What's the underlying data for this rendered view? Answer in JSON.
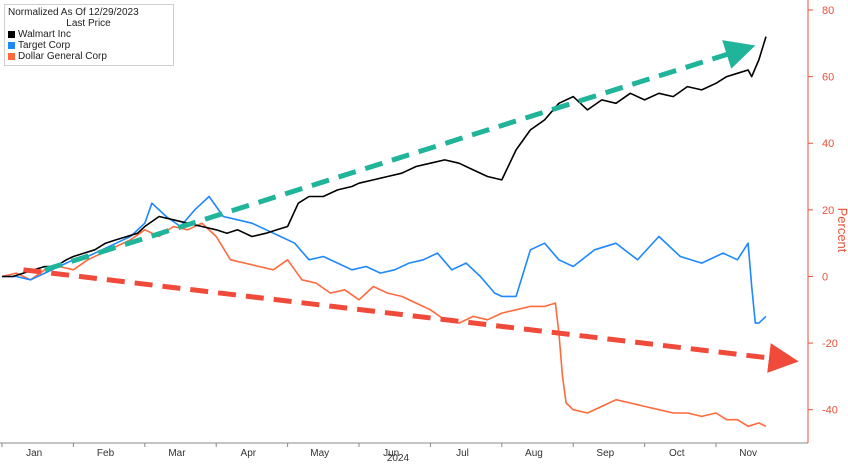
{
  "legend": {
    "header": "Normalized As Of 12/29/2023",
    "subheader": "Last Price"
  },
  "chart_data": {
    "type": "line",
    "ylabel": "Percent",
    "ylim": [
      -50,
      80
    ],
    "y_ticks": [
      80,
      60,
      40,
      20,
      0,
      -20,
      -40
    ],
    "y_tick_labels": [
      "80",
      "60",
      "40",
      "20",
      "0",
      "-20",
      "-40"
    ],
    "x_ticks": [
      "Jan",
      "Feb",
      "Mar",
      "Apr",
      "May",
      "Jun",
      "Jul",
      "Aug",
      "Sep",
      "Oct",
      "Nov"
    ],
    "x_year_label": "2024",
    "grid": false,
    "legend_position": "top-left",
    "axis_color": "#e8523a",
    "series": [
      {
        "name": "Walmart Inc",
        "color": "#000000",
        "x": [
          0,
          0.15,
          0.3,
          0.45,
          0.6,
          0.75,
          0.9,
          1,
          1.15,
          1.3,
          1.45,
          1.6,
          1.75,
          1.9,
          2,
          2.2,
          2.4,
          2.6,
          2.8,
          3,
          3.15,
          3.3,
          3.5,
          3.7,
          3.85,
          4,
          4.15,
          4.3,
          4.5,
          4.7,
          4.9,
          5,
          5.2,
          5.4,
          5.6,
          5.8,
          6,
          6.2,
          6.4,
          6.6,
          6.8,
          7,
          7.2,
          7.4,
          7.6,
          7.8,
          8,
          8.2,
          8.4,
          8.6,
          8.8,
          9,
          9.2,
          9.4,
          9.6,
          9.8,
          10,
          10.15,
          10.3,
          10.45,
          10.5,
          10.6,
          10.7
        ],
        "values": [
          0,
          0,
          1,
          2,
          3,
          3,
          5,
          6,
          7,
          8,
          10,
          11,
          12,
          13,
          15,
          18,
          17,
          16,
          15,
          14,
          13,
          14,
          12,
          13,
          14,
          15,
          22,
          24,
          24,
          26,
          27,
          28,
          29,
          30,
          31,
          33,
          34,
          35,
          34,
          32,
          30,
          29,
          38,
          44,
          47,
          52,
          54,
          50,
          53,
          52,
          55,
          53,
          55,
          54,
          57,
          56,
          58,
          60,
          61,
          62,
          60,
          65,
          72
        ]
      },
      {
        "name": "Target Corp",
        "color": "#1e88ff",
        "x": [
          0,
          0.2,
          0.4,
          0.6,
          0.8,
          1,
          1.2,
          1.4,
          1.6,
          1.8,
          2,
          2.1,
          2.3,
          2.5,
          2.7,
          2.9,
          3.1,
          3.3,
          3.5,
          3.7,
          3.9,
          4.1,
          4.3,
          4.5,
          4.7,
          4.9,
          5.1,
          5.3,
          5.5,
          5.7,
          5.9,
          6.1,
          6.3,
          6.5,
          6.7,
          6.9,
          7,
          7.2,
          7.4,
          7.6,
          7.8,
          8,
          8.3,
          8.6,
          8.9,
          9.2,
          9.5,
          9.8,
          10.1,
          10.3,
          10.45,
          10.5,
          10.55,
          10.6,
          10.7
        ],
        "values": [
          0,
          0,
          -1,
          1,
          3,
          5,
          6,
          8,
          10,
          12,
          16,
          22,
          18,
          15,
          20,
          24,
          18,
          17,
          16,
          14,
          12,
          10,
          5,
          6,
          4,
          2,
          3,
          1,
          2,
          4,
          5,
          7,
          2,
          4,
          0,
          -5,
          -6,
          -6,
          8,
          10,
          5,
          3,
          8,
          10,
          5,
          12,
          6,
          4,
          7,
          5,
          10,
          -3,
          -14,
          -14,
          -12
        ]
      },
      {
        "name": "Dollar General Corp",
        "color": "#ff6a3d",
        "x": [
          0,
          0.2,
          0.4,
          0.6,
          0.8,
          1,
          1.2,
          1.4,
          1.6,
          1.8,
          2,
          2.2,
          2.4,
          2.6,
          2.8,
          3,
          3.2,
          3.4,
          3.6,
          3.8,
          4,
          4.2,
          4.4,
          4.6,
          4.8,
          5,
          5.2,
          5.4,
          5.6,
          5.8,
          6,
          6.2,
          6.4,
          6.6,
          6.8,
          7,
          7.2,
          7.4,
          7.6,
          7.75,
          7.8,
          7.85,
          7.9,
          8,
          8.2,
          8.4,
          8.6,
          8.8,
          9,
          9.2,
          9.4,
          9.6,
          9.8,
          10,
          10.15,
          10.3,
          10.45,
          10.6,
          10.7
        ],
        "values": [
          0,
          1,
          -1,
          2,
          3,
          2,
          5,
          7,
          9,
          11,
          14,
          12,
          15,
          14,
          16,
          12,
          5,
          4,
          3,
          2,
          5,
          -1,
          -2,
          -5,
          -4,
          -7,
          -3,
          -5,
          -6,
          -8,
          -10,
          -13,
          -14,
          -12,
          -13,
          -11,
          -10,
          -9,
          -9,
          -8,
          -17,
          -30,
          -38,
          -40,
          -41,
          -39,
          -37,
          -38,
          -39,
          -40,
          -41,
          -41,
          -42,
          -41,
          -43,
          -43,
          -45,
          -44,
          -45
        ]
      }
    ],
    "annotations": [
      {
        "type": "arrow",
        "color": "#20b49a",
        "direction": "up"
      },
      {
        "type": "arrow",
        "color": "#f04a3a",
        "direction": "down"
      }
    ]
  }
}
